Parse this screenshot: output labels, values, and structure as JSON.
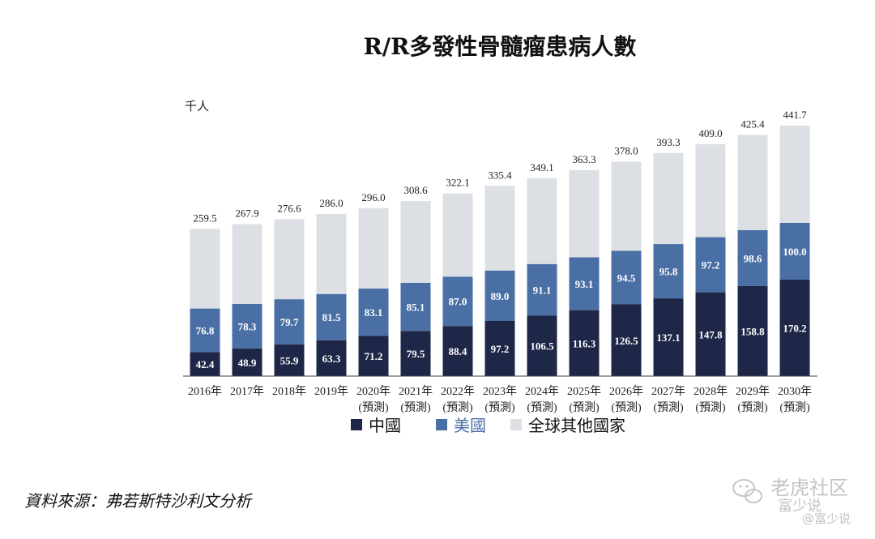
{
  "chart_data": {
    "type": "bar",
    "stacked": true,
    "title": "R/R多發性骨髓瘤患病人數",
    "unit_label": "千人",
    "categories": [
      "2016年",
      "2017年",
      "2018年",
      "2019年",
      "2020年",
      "2021年",
      "2022年",
      "2023年",
      "2024年",
      "2025年",
      "2026年",
      "2027年",
      "2028年",
      "2029年",
      "2030年"
    ],
    "category_sublabels": [
      "",
      "",
      "",
      "",
      "(預測)",
      "(預測)",
      "(預測)",
      "(預測)",
      "(預測)",
      "(預測)",
      "(預測)",
      "(預測)",
      "(預測)",
      "(預測)",
      "(預測)"
    ],
    "series": [
      {
        "name": "中國",
        "color": "#1e2747",
        "values": [
          42.4,
          48.9,
          55.9,
          63.3,
          71.2,
          79.5,
          88.4,
          97.2,
          106.5,
          116.3,
          126.5,
          137.1,
          147.8,
          158.8,
          170.2
        ]
      },
      {
        "name": "美國",
        "color": "#4a6fa5",
        "values": [
          76.8,
          78.3,
          79.7,
          81.5,
          83.1,
          85.1,
          87.0,
          89.0,
          91.1,
          93.1,
          94.5,
          95.8,
          97.2,
          98.6,
          100.0
        ]
      },
      {
        "name": "全球其他國家",
        "color": "#dcdfe3",
        "values": [
          140.3,
          140.7,
          141.0,
          141.2,
          141.7,
          144.0,
          146.7,
          149.2,
          151.5,
          153.9,
          157.0,
          160.4,
          164.0,
          168.0,
          171.5
        ]
      }
    ],
    "totals": [
      "259.5",
      "267.9",
      "276.6",
      "286.0",
      "296.0",
      "308.6",
      "322.1",
      "335.4",
      "349.1",
      "363.3",
      "378.0",
      "393.3",
      "409.0",
      "425.4",
      "441.7"
    ],
    "segment_labels": {
      "中國": [
        "42.4",
        "48.9",
        "55.9",
        "63.3",
        "71.2",
        "79.5",
        "88.4",
        "97.2",
        "106.5",
        "116.3",
        "126.5",
        "137.1",
        "147.8",
        "158.8",
        "170.2"
      ],
      "美國": [
        "76.8",
        "78.3",
        "79.7",
        "81.5",
        "83.1",
        "85.1",
        "87.0",
        "89.0",
        "91.1",
        "93.1",
        "94.5",
        "95.8",
        "97.2",
        "98.6",
        "100.0"
      ]
    },
    "ylim": [
      0,
      441.7
    ],
    "grid": false,
    "legend": "bottom"
  },
  "legend_text_colors": {
    "中國": "#111111",
    "美國": "#4a6fa5",
    "全球其他國家": "#111111"
  },
  "source": "資料來源：弗若斯特沙利文分析",
  "watermark": {
    "main": "老虎社区",
    "sub": "富少说",
    "handle": "@富少说"
  }
}
